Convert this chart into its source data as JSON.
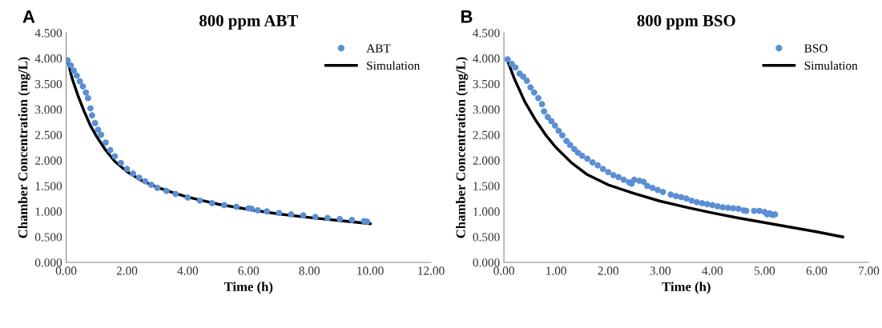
{
  "chart_data": [
    {
      "type": "scatter",
      "title": "800 ppm ABT",
      "xlabel": "Time (h)",
      "ylabel": "Chamber Concentration (mg/L)",
      "annotations": [
        "A"
      ],
      "legend": "top right",
      "grid": false,
      "xlim": [
        0,
        12
      ],
      "xticks": [
        {
          "value": 0,
          "label": "0.00"
        },
        {
          "value": 2,
          "label": "2.00"
        },
        {
          "value": 4,
          "label": "4.00"
        },
        {
          "value": 6,
          "label": "6.00"
        },
        {
          "value": 8,
          "label": "8.00"
        },
        {
          "value": 10,
          "label": "10.00"
        },
        {
          "value": 12,
          "label": "12.00"
        }
      ],
      "ylim": [
        0,
        4.5
      ],
      "yticks": [
        {
          "value": 0,
          "label": "0.000"
        },
        {
          "value": 0.5,
          "label": "0.500"
        },
        {
          "value": 1,
          "label": "1.000"
        },
        {
          "value": 1.5,
          "label": "1.500"
        },
        {
          "value": 2,
          "label": "2.000"
        },
        {
          "value": 2.5,
          "label": "2.500"
        },
        {
          "value": 3,
          "label": "3.000"
        },
        {
          "value": 3.5,
          "label": "3.500"
        },
        {
          "value": 4,
          "label": "4.000"
        },
        {
          "value": 4.5,
          "label": "4.500"
        }
      ],
      "series": [
        {
          "name": "ABT",
          "marker": "circle",
          "color": "#5b8fd4",
          "x": [
            0.05,
            0.15,
            0.25,
            0.35,
            0.45,
            0.55,
            0.65,
            0.72,
            0.8,
            0.85,
            0.95,
            1.05,
            1.15,
            1.3,
            1.45,
            1.6,
            1.8,
            2.0,
            2.2,
            2.4,
            2.6,
            2.8,
            3.0,
            3.3,
            3.6,
            4.0,
            4.4,
            4.8,
            5.2,
            5.6,
            6.0,
            6.1,
            6.3,
            6.6,
            7.0,
            7.4,
            7.8,
            8.2,
            8.6,
            9.0,
            9.4,
            9.8,
            9.9
          ],
          "values": [
            3.96,
            3.86,
            3.76,
            3.66,
            3.55,
            3.45,
            3.33,
            3.22,
            3.02,
            2.88,
            2.73,
            2.6,
            2.5,
            2.35,
            2.2,
            2.08,
            1.95,
            1.83,
            1.74,
            1.66,
            1.59,
            1.52,
            1.46,
            1.4,
            1.34,
            1.27,
            1.21,
            1.16,
            1.12,
            1.09,
            1.06,
            1.05,
            1.02,
            1.0,
            0.97,
            0.94,
            0.92,
            0.89,
            0.87,
            0.85,
            0.83,
            0.81,
            0.8
          ]
        },
        {
          "name": "Simulation",
          "type": "line",
          "marker": "none",
          "color": "#000000",
          "x": [
            0.05,
            0.2,
            0.4,
            0.6,
            0.8,
            1.0,
            1.3,
            1.6,
            2.0,
            2.5,
            3.0,
            3.5,
            4.0,
            5.0,
            6.0,
            7.0,
            8.0,
            9.0,
            10.0
          ],
          "values": [
            3.95,
            3.6,
            3.25,
            2.95,
            2.68,
            2.47,
            2.2,
            1.98,
            1.78,
            1.6,
            1.47,
            1.37,
            1.28,
            1.14,
            1.04,
            0.95,
            0.88,
            0.82,
            0.76
          ]
        }
      ]
    },
    {
      "type": "scatter",
      "title": "800 ppm BSO",
      "xlabel": "Time (h)",
      "ylabel": "Chamber Concentration (mg/L)",
      "annotations": [
        "B"
      ],
      "legend": "top right",
      "grid": false,
      "xlim": [
        0,
        7
      ],
      "xticks": [
        {
          "value": 0,
          "label": "0.00"
        },
        {
          "value": 1,
          "label": "1.00"
        },
        {
          "value": 2,
          "label": "2.00"
        },
        {
          "value": 3,
          "label": "3.00"
        },
        {
          "value": 4,
          "label": "4.00"
        },
        {
          "value": 5,
          "label": "5.00"
        },
        {
          "value": 6,
          "label": "6.00"
        },
        {
          "value": 7,
          "label": "7.00"
        }
      ],
      "ylim": [
        0,
        4.5
      ],
      "yticks": [
        {
          "value": 0,
          "label": "0.000"
        },
        {
          "value": 0.5,
          "label": "0.500"
        },
        {
          "value": 1,
          "label": "1.000"
        },
        {
          "value": 1.5,
          "label": "1.500"
        },
        {
          "value": 2,
          "label": "2.000"
        },
        {
          "value": 2.5,
          "label": "2.500"
        },
        {
          "value": 3,
          "label": "3.000"
        },
        {
          "value": 3.5,
          "label": "3.500"
        },
        {
          "value": 4,
          "label": "4.000"
        },
        {
          "value": 4.5,
          "label": "4.500"
        }
      ],
      "series": [
        {
          "name": "BSO",
          "marker": "circle",
          "color": "#5b8fd4",
          "x": [
            0.07,
            0.15,
            0.22,
            0.3,
            0.37,
            0.44,
            0.51,
            0.58,
            0.66,
            0.73,
            0.77,
            0.84,
            0.91,
            0.98,
            1.05,
            1.12,
            1.2,
            1.27,
            1.35,
            1.42,
            1.5,
            1.6,
            1.7,
            1.8,
            1.9,
            2.0,
            2.1,
            2.2,
            2.3,
            2.4,
            2.45,
            2.5,
            2.6,
            2.68,
            2.75,
            2.85,
            2.95,
            3.05,
            3.2,
            3.3,
            3.4,
            3.5,
            3.6,
            3.7,
            3.8,
            3.9,
            4.0,
            4.1,
            4.2,
            4.3,
            4.4,
            4.5,
            4.6,
            4.65,
            4.8,
            4.9,
            5.0,
            5.05,
            5.1,
            5.15,
            5.2
          ],
          "values": [
            3.98,
            3.89,
            3.82,
            3.7,
            3.64,
            3.56,
            3.43,
            3.33,
            3.22,
            3.1,
            2.96,
            2.85,
            2.77,
            2.68,
            2.58,
            2.49,
            2.38,
            2.3,
            2.22,
            2.15,
            2.09,
            2.03,
            1.96,
            1.9,
            1.83,
            1.77,
            1.71,
            1.67,
            1.62,
            1.57,
            1.54,
            1.62,
            1.6,
            1.58,
            1.5,
            1.46,
            1.42,
            1.38,
            1.33,
            1.3,
            1.28,
            1.25,
            1.21,
            1.18,
            1.16,
            1.14,
            1.12,
            1.1,
            1.08,
            1.07,
            1.06,
            1.05,
            1.02,
            1.01,
            1.01,
            1.01,
            0.99,
            0.94,
            0.96,
            0.93,
            0.94
          ]
        },
        {
          "name": "Simulation",
          "type": "line",
          "marker": "none",
          "color": "#000000",
          "x": [
            0.07,
            0.2,
            0.4,
            0.6,
            0.8,
            1.0,
            1.3,
            1.6,
            2.0,
            2.5,
            3.0,
            3.5,
            4.0,
            4.5,
            5.0,
            5.5,
            6.0,
            6.5
          ],
          "values": [
            3.95,
            3.6,
            3.15,
            2.8,
            2.5,
            2.25,
            1.95,
            1.72,
            1.52,
            1.35,
            1.2,
            1.08,
            0.97,
            0.87,
            0.78,
            0.69,
            0.6,
            0.5
          ]
        }
      ]
    }
  ]
}
